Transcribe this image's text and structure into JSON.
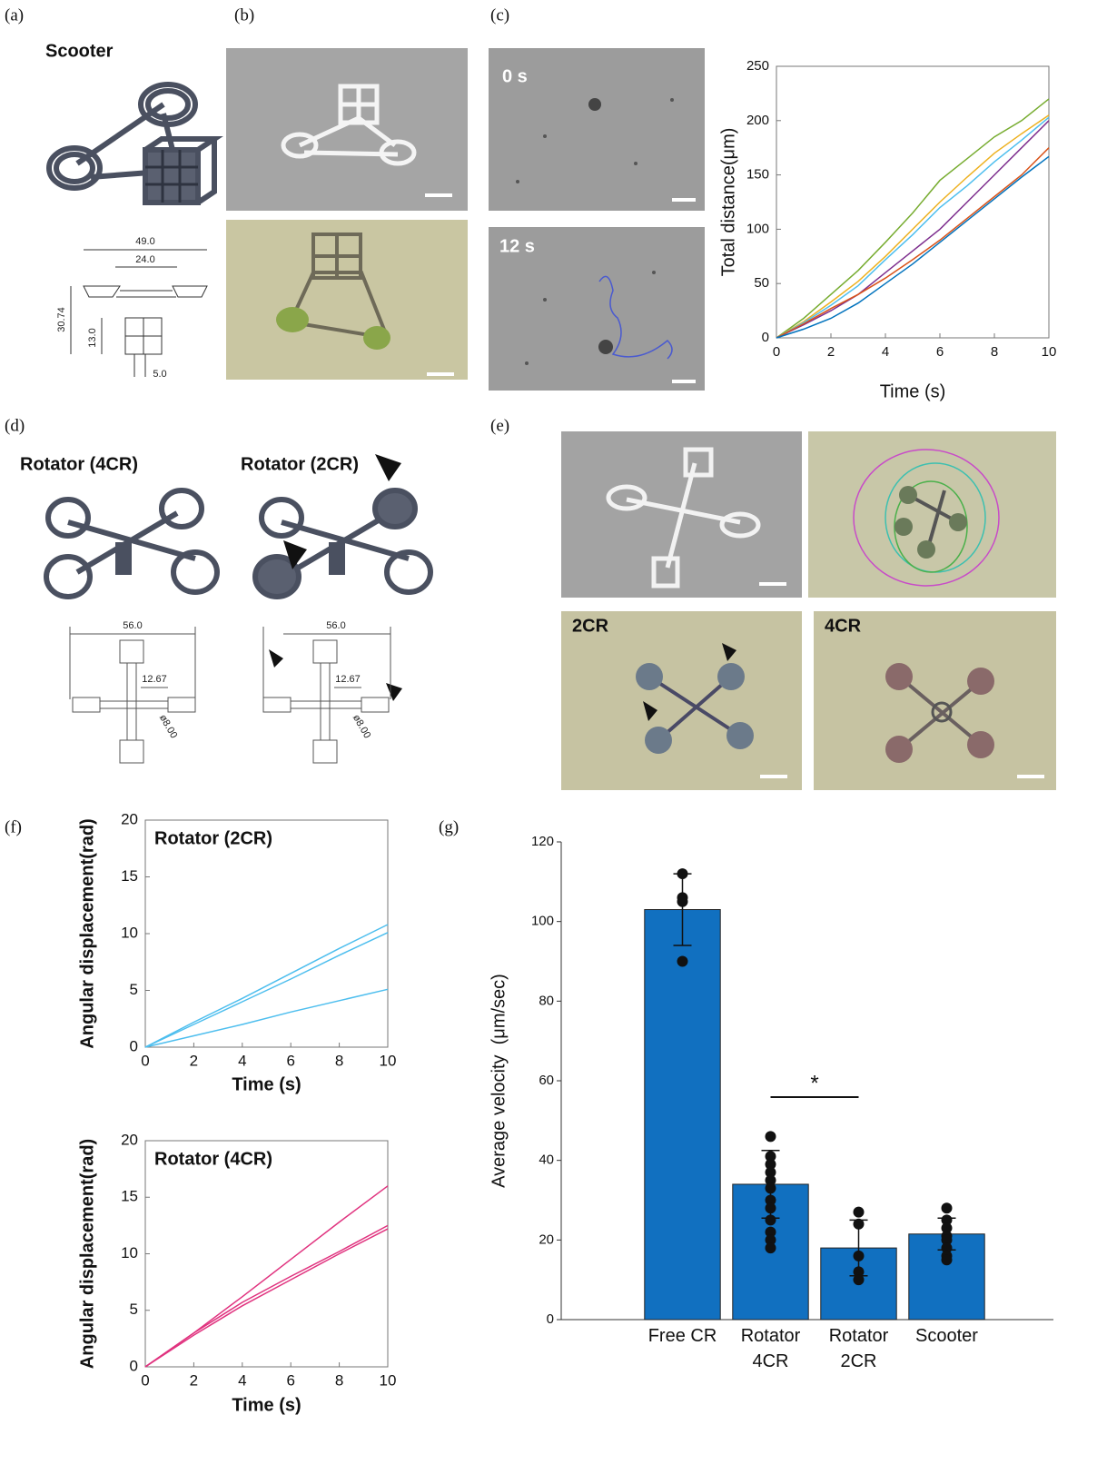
{
  "figure": {
    "panel_labels": [
      "(a)",
      "(b)",
      "(c)",
      "(d)",
      "(e)",
      "(f)",
      "(g)"
    ],
    "a": {
      "title": "Scooter",
      "dims": [
        "49.0",
        "24.0",
        "30.74",
        "13.0",
        "5.0"
      ]
    },
    "c": {
      "frame_labels": [
        "0 s",
        "12 s"
      ]
    },
    "d": {
      "titles": [
        "Rotator (4CR)",
        "Rotator (2CR)"
      ],
      "dims": [
        "56.0",
        "12.67",
        "ø8.00"
      ]
    },
    "e": {
      "labels": [
        "2CR",
        "4CR"
      ]
    }
  },
  "chart_data": [
    {
      "type": "line",
      "xlabel": "Time (s)",
      "ylabel": "Total distance(μm)",
      "x": [
        0,
        1,
        2,
        3,
        4,
        5,
        6,
        7,
        8,
        9,
        10
      ],
      "xlim": [
        0,
        10
      ],
      "ylim": [
        0,
        250
      ],
      "xticks": [
        0,
        2,
        4,
        6,
        8,
        10
      ],
      "yticks": [
        0,
        50,
        100,
        150,
        200,
        250
      ],
      "series": [
        {
          "color": "#77ac30",
          "values": [
            0,
            18,
            40,
            62,
            88,
            115,
            145,
            165,
            185,
            200,
            220
          ]
        },
        {
          "color": "#edb120",
          "values": [
            0,
            15,
            33,
            52,
            75,
            100,
            125,
            148,
            170,
            188,
            205
          ]
        },
        {
          "color": "#4dbeee",
          "values": [
            0,
            14,
            30,
            48,
            72,
            95,
            120,
            140,
            162,
            182,
            203
          ]
        },
        {
          "color": "#7e2f8e",
          "values": [
            0,
            12,
            25,
            40,
            60,
            80,
            100,
            125,
            150,
            175,
            200
          ]
        },
        {
          "color": "#d95319",
          "values": [
            0,
            13,
            27,
            40,
            55,
            72,
            90,
            110,
            130,
            150,
            175
          ]
        },
        {
          "color": "#0072bd",
          "values": [
            0,
            8,
            18,
            32,
            50,
            68,
            88,
            108,
            128,
            148,
            167
          ]
        }
      ]
    },
    {
      "type": "line",
      "title": "Rotator (2CR)",
      "xlabel": "Time (s)",
      "ylabel": "Angular displacement(rad)",
      "x": [
        0,
        2,
        4,
        6,
        8,
        10
      ],
      "xlim": [
        0,
        10
      ],
      "ylim": [
        0,
        20
      ],
      "xticks": [
        0,
        2,
        4,
        6,
        8,
        10
      ],
      "yticks": [
        0,
        5,
        10,
        15,
        20
      ],
      "series": [
        {
          "color": "#4dbeee",
          "values": [
            0,
            2.2,
            4.3,
            6.5,
            8.7,
            10.8
          ]
        },
        {
          "color": "#4dbeee",
          "values": [
            0,
            2.0,
            4.0,
            6.0,
            8.1,
            10.1
          ]
        },
        {
          "color": "#4dbeee",
          "values": [
            0,
            1.0,
            2.0,
            3.1,
            4.1,
            5.1
          ]
        }
      ]
    },
    {
      "type": "line",
      "title": "Rotator (4CR)",
      "xlabel": "Time (s)",
      "ylabel": "Angular displacement(rad)",
      "x": [
        0,
        2,
        4,
        6,
        8,
        10
      ],
      "xlim": [
        0,
        10
      ],
      "ylim": [
        0,
        20
      ],
      "xticks": [
        0,
        2,
        4,
        6,
        8,
        10
      ],
      "yticks": [
        0,
        5,
        10,
        15,
        20
      ],
      "series": [
        {
          "color": "#e0337f",
          "values": [
            0,
            3.0,
            6.2,
            9.5,
            12.8,
            16.0
          ]
        },
        {
          "color": "#e0337f",
          "values": [
            0,
            3.0,
            5.7,
            8.0,
            10.2,
            12.5
          ]
        },
        {
          "color": "#e0337f",
          "values": [
            0,
            2.8,
            5.4,
            7.7,
            10.0,
            12.2
          ]
        }
      ]
    },
    {
      "type": "bar",
      "ylabel": "Average velocity  (μm/sec)",
      "annotation": "*",
      "categories": [
        "Free CR",
        "Rotator 4CR",
        "Rotator 2CR",
        "Scooter"
      ],
      "values": [
        103,
        34,
        18,
        21.5
      ],
      "errors": [
        9,
        8.5,
        7,
        4
      ],
      "color": "#1170c0",
      "points": [
        [
          112,
          106,
          105,
          90
        ],
        [
          46,
          41,
          39,
          37,
          35,
          33,
          30,
          28,
          25,
          22,
          20,
          18
        ],
        [
          27,
          24,
          16,
          12,
          10
        ],
        [
          28,
          25,
          23,
          21,
          20,
          18,
          16,
          15
        ]
      ],
      "ylim": [
        0,
        120
      ],
      "yticks": [
        0,
        20,
        40,
        60,
        80,
        100,
        120
      ]
    }
  ]
}
